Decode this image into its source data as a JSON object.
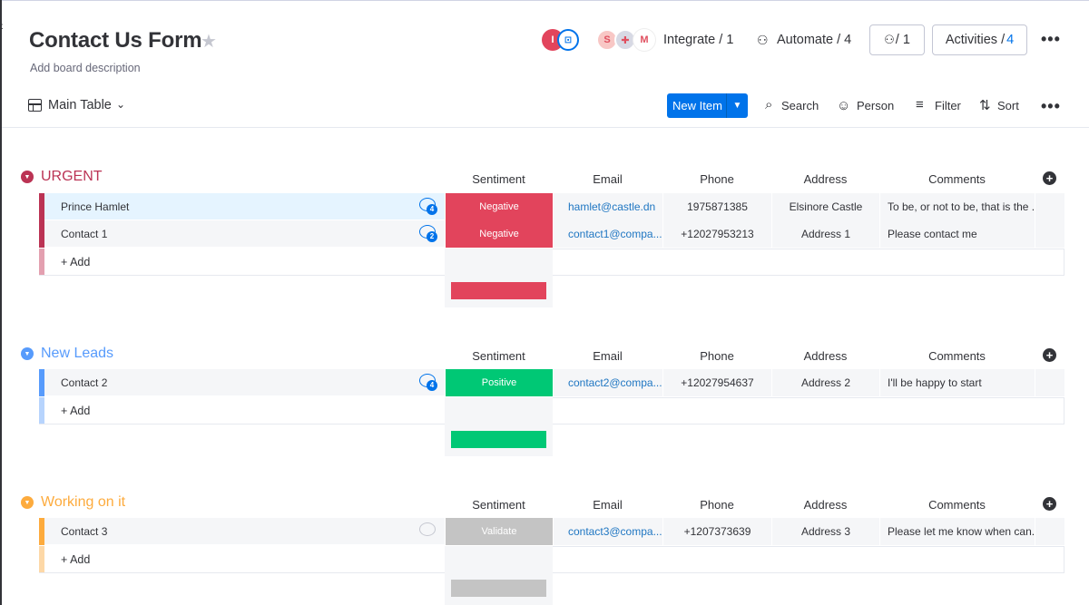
{
  "board": {
    "title": "Contact Us Form",
    "description": "Add board description",
    "avatar_initial": "I",
    "integrate_label": "Integrate / 1",
    "automate_label": "Automate / 4",
    "members_label": "/ 1",
    "activities_label": "Activities /",
    "activities_count": "4"
  },
  "toolbar": {
    "view_label": "Main Table",
    "new_item": "New Item",
    "search": "Search",
    "person": "Person",
    "filter": "Filter",
    "sort": "Sort"
  },
  "columns": {
    "sentiment": "Sentiment",
    "email": "Email",
    "phone": "Phone",
    "address": "Address",
    "comments": "Comments"
  },
  "add_label": "+ Add",
  "colors": {
    "urgent": "#e2445c",
    "urgent_bar": "#bb3354",
    "new_leads": "#579bfc",
    "working": "#fdab3d",
    "negative": "#e2445c",
    "positive": "#00c875",
    "validate": "#c4c4c4",
    "accent": "#0073ea"
  },
  "groups": [
    {
      "title": "URGENT",
      "items": [
        {
          "name": "Prince Hamlet",
          "updates": "4",
          "sentiment": "Negative",
          "email": "hamlet@castle.dn",
          "phone": "1975871385",
          "address": "Elsinore Castle",
          "comments": "To be, or not to be, that is the ..."
        },
        {
          "name": "Contact 1",
          "updates": "2",
          "sentiment": "Negative",
          "email": "contact1@compa...",
          "phone": "+12027953213",
          "address": "Address 1",
          "comments": "Please contact me"
        }
      ]
    },
    {
      "title": "New Leads",
      "items": [
        {
          "name": "Contact 2",
          "updates": "4",
          "sentiment": "Positive",
          "email": "contact2@compa...",
          "phone": "+12027954637",
          "address": "Address 2",
          "comments": "I'll be happy to start"
        }
      ]
    },
    {
      "title": "Working on it",
      "items": [
        {
          "name": "Contact 3",
          "updates": "",
          "sentiment": "Validate",
          "email": "contact3@compa...",
          "phone": "+1207373639",
          "address": "Address 3",
          "comments": "Please let me know when can..."
        }
      ]
    }
  ]
}
